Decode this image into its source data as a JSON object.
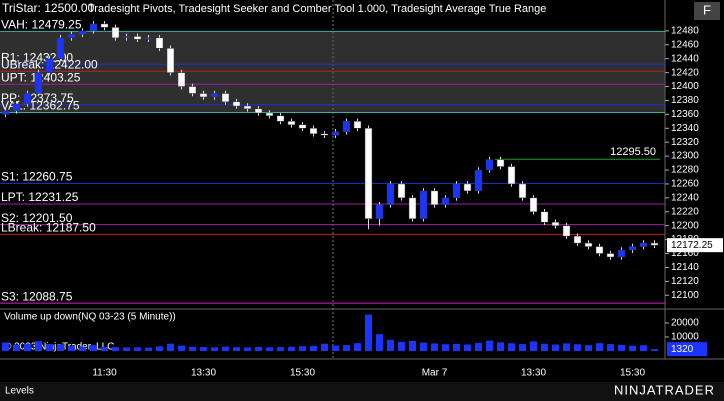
{
  "chart_data": [
    {
      "type": "candlestick",
      "title": "Tradesight Pivots, Tradesight Seeker and Comber Tool 1.000, Tradesight Average True Range",
      "tristar": "TriStar: 12500.00",
      "categories": [
        null,
        null,
        null,
        null,
        null,
        null,
        null,
        null,
        null,
        "11:30",
        null,
        null,
        null,
        null,
        null,
        null,
        null,
        null,
        "13:30",
        null,
        null,
        null,
        null,
        null,
        null,
        null,
        null,
        "15:30",
        null,
        null,
        null,
        null,
        null,
        null,
        null,
        null,
        null,
        null,
        null,
        "Mar 7",
        null,
        null,
        null,
        null,
        null,
        null,
        null,
        null,
        "13:30",
        null,
        null,
        null,
        null,
        null,
        null,
        null,
        null,
        "15:30",
        null,
        null
      ],
      "open": [
        12360,
        12365,
        12375,
        12390,
        12420,
        12440,
        12470,
        12475,
        12480,
        12490,
        12485,
        12470,
        12472,
        12468,
        12470,
        12455,
        12420,
        12400,
        12390,
        12385,
        12390,
        12378,
        12372,
        12368,
        12362,
        12358,
        12350,
        12345,
        12340,
        12332,
        12330,
        12335,
        12350,
        12340,
        12210,
        12230,
        12260,
        12240,
        12210,
        12250,
        12230,
        12240,
        12260,
        12250,
        12280,
        12295,
        12285,
        12260,
        12240,
        12220,
        12205,
        12200,
        12185,
        12175,
        12170,
        12160,
        12155,
        12165,
        12170,
        12175
      ],
      "high": [
        12369,
        12379,
        12394,
        12424,
        12444,
        12474,
        12479,
        12484,
        12494,
        12494,
        12489,
        12476,
        12476,
        12474,
        12474,
        12459,
        12424,
        12404,
        12394,
        12394,
        12394,
        12382,
        12376,
        12372,
        12366,
        12362,
        12354,
        12349,
        12344,
        12336,
        12339,
        12354,
        12354,
        12344,
        12234,
        12264,
        12264,
        12244,
        12254,
        12254,
        12244,
        12264,
        12264,
        12284,
        12299,
        12299,
        12289,
        12264,
        12244,
        12224,
        12209,
        12204,
        12189,
        12179,
        12174,
        12164,
        12169,
        12174,
        12179,
        12179
      ],
      "low": [
        12356,
        12361,
        12371,
        12386,
        12416,
        12436,
        12466,
        12471,
        12476,
        12481,
        12466,
        12466,
        12464,
        12464,
        12451,
        12416,
        12396,
        12386,
        12381,
        12381,
        12374,
        12368,
        12364,
        12358,
        12354,
        12346,
        12341,
        12336,
        12328,
        12326,
        12326,
        12331,
        12336,
        12195,
        12200,
        12226,
        12236,
        12206,
        12206,
        12226,
        12226,
        12236,
        12246,
        12246,
        12276,
        12281,
        12256,
        12236,
        12216,
        12201,
        12196,
        12181,
        12171,
        12166,
        12156,
        12151,
        12151,
        12161,
        12166,
        12168
      ],
      "close": [
        12365,
        12375,
        12390,
        12420,
        12440,
        12470,
        12475,
        12480,
        12490,
        12485,
        12470,
        12472,
        12468,
        12470,
        12455,
        12420,
        12400,
        12390,
        12385,
        12390,
        12378,
        12372,
        12368,
        12362,
        12358,
        12350,
        12345,
        12340,
        12332,
        12330,
        12335,
        12350,
        12340,
        12210,
        12230,
        12260,
        12240,
        12210,
        12250,
        12230,
        12240,
        12260,
        12250,
        12280,
        12295,
        12285,
        12260,
        12240,
        12220,
        12205,
        12200,
        12185,
        12175,
        12170,
        12160,
        12155,
        12165,
        12170,
        12175,
        12172
      ],
      "up_color": "#1c34ff",
      "down_color": "#ffffff",
      "ylim": [
        12086,
        12510
      ],
      "yticks": [
        12100,
        12120,
        12140,
        12160,
        12180,
        12200,
        12220,
        12240,
        12260,
        12280,
        12300,
        12320,
        12340,
        12360,
        12380,
        12400,
        12420,
        12440,
        12460,
        12480
      ],
      "levels": [
        {
          "label": "VAH: 12479.25",
          "value": 12479.25,
          "color": "#2fb5a8"
        },
        {
          "label": "R1: 12432.00",
          "value": 12432.0,
          "color": "#2030d0"
        },
        {
          "label": "UBreak: 12422.00",
          "value": 12422.0,
          "color": "#c02020"
        },
        {
          "label": "UPT: 12403.25",
          "value": 12403.25,
          "color": "#a020a0"
        },
        {
          "label": "PP: 12373.75",
          "value": 12373.75,
          "color": "#2030d0"
        },
        {
          "label": "VAL: 12362.75",
          "value": 12362.75,
          "color": "#2fb5a8"
        },
        {
          "label": "S1: 12260.75",
          "value": 12260.75,
          "color": "#2030d0"
        },
        {
          "label": "LPT: 12231.25",
          "value": 12231.25,
          "color": "#a020a0"
        },
        {
          "label": "S2: 12201.50",
          "value": 12201.5,
          "color": "#a020a0"
        },
        {
          "label": "LBreak: 12187.50",
          "value": 12187.5,
          "color": "#c02020"
        },
        {
          "label": "S3: 12088.75",
          "value": 12088.75,
          "color": "#d020d0"
        }
      ],
      "value_area_color": "#555555",
      "target": {
        "label": "12295.50",
        "value": 12295.5,
        "color": "#20a020"
      },
      "last_price": "12172.25"
    },
    {
      "type": "bar",
      "title": "Volume up down(NQ 03-23 (5 Minute))",
      "values": [
        6000,
        4500,
        5200,
        7000,
        5000,
        4800,
        3500,
        3200,
        4100,
        3000,
        2800,
        2500,
        2600,
        2400,
        3300,
        5200,
        3800,
        3000,
        2800,
        2600,
        3100,
        2700,
        2500,
        2900,
        2600,
        2800,
        3000,
        3400,
        3600,
        5200,
        3900,
        4200,
        5600,
        26000,
        12000,
        8000,
        6500,
        7200,
        6000,
        5400,
        4800,
        5100,
        4600,
        5800,
        7400,
        6200,
        5500,
        4900,
        6800,
        5200,
        4600,
        5400,
        4800,
        4200,
        5600,
        4900,
        4400,
        3800,
        4100,
        1320
      ],
      "color": "#1c34ff",
      "ylim": [
        0,
        27800
      ],
      "yticks": [
        10000,
        20000
      ],
      "last_volume": "1320"
    }
  ],
  "copyright": "© 2023 NinjaTrader, LLC",
  "tab": "Levels",
  "logo": "NINJATRADER",
  "button": "F"
}
